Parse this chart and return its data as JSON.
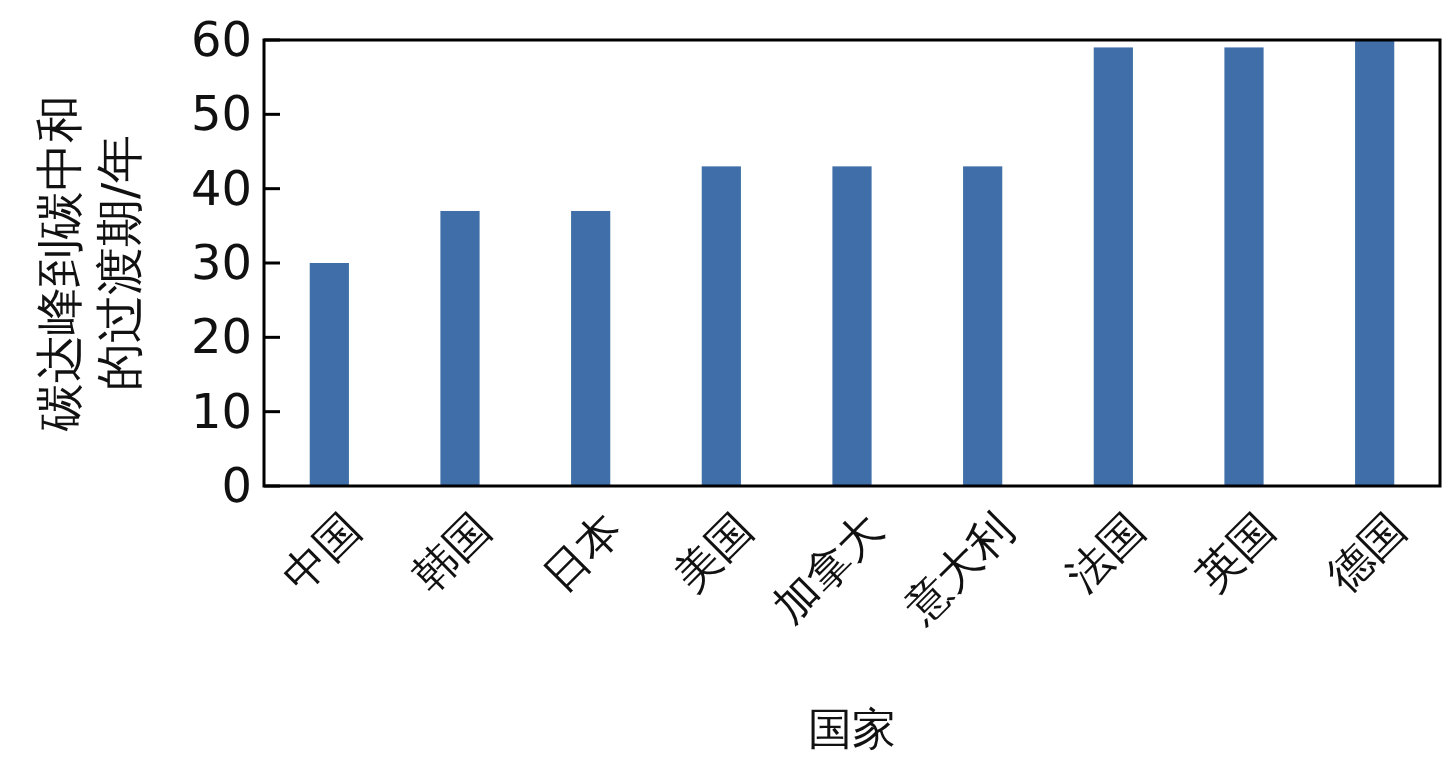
{
  "chart_data": {
    "type": "bar",
    "xlabel": "国家",
    "ylabel": "碳达峰到碳中和的过渡期/年",
    "categories": [
      "中国",
      "韩国",
      "日本",
      "美国",
      "加拿大",
      "意大利",
      "法国",
      "英国",
      "德国"
    ],
    "values": [
      30,
      37,
      37,
      43,
      43,
      43,
      59,
      59,
      60
    ],
    "color": "#3f6ea8",
    "ylim": [
      0,
      60
    ],
    "yticks": [
      0,
      10,
      20,
      30,
      40,
      50,
      60
    ],
    "grid": false
  }
}
